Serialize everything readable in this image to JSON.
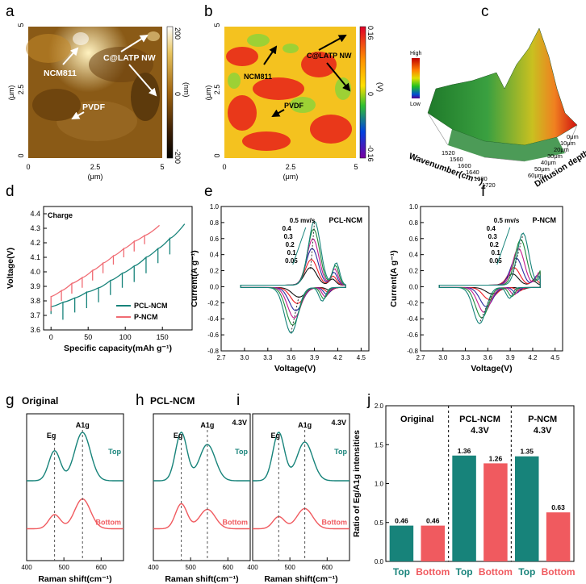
{
  "figure": {
    "panels": {
      "a": {
        "label": "a",
        "xlabel": "(μm)",
        "ylabel": "(μm)",
        "cbar_label": "(nm)",
        "xticks": [
          "0",
          "2.5",
          "5"
        ],
        "yticks": [
          "0",
          "2.5",
          "5"
        ],
        "cbar_ticks": [
          "200",
          "0",
          "-200"
        ],
        "annotations": {
          "ncm": "NCM811",
          "latp": "C@LATP NW",
          "pvdf": "PVDF"
        }
      },
      "b": {
        "label": "b",
        "xlabel": "(μm)",
        "ylabel": "(μm)",
        "cbar_label": "(V)",
        "xticks": [
          "0",
          "2.5",
          "5"
        ],
        "yticks": [
          "0",
          "2.5",
          "5"
        ],
        "cbar_ticks": [
          "0.16",
          "0",
          "-0.16"
        ],
        "annotations": {
          "ncm": "NCM811",
          "latp": "C@LATP NW",
          "pvdf": "PVDF"
        }
      },
      "c": {
        "label": "c",
        "legend_high": "High",
        "legend_low": "Low",
        "xlabel": "Wavenumber(cm⁻¹)",
        "ylabel": "Diffusion depth",
        "wavenumber_ticks": [
          "1520",
          "1560",
          "1600",
          "1640",
          "1680",
          "1720"
        ],
        "depth_ticks": [
          "0μm",
          "10μm",
          "20μm",
          "30μm",
          "40μm",
          "50μm",
          "60μm"
        ]
      }
    }
  },
  "chart_data": [
    {
      "panel": "d",
      "type": "line",
      "label": "d",
      "title": "Charge",
      "xlabel": "Specific capacity(mAh g⁻¹)",
      "ylabel": "Voltage(V)",
      "xlim": [
        -10,
        190
      ],
      "ylim": [
        3.6,
        4.45
      ],
      "xticks": [
        "0",
        "50",
        "100",
        "150"
      ],
      "yticks": [
        "3.6",
        "3.7",
        "3.8",
        "3.9",
        "4.0",
        "4.1",
        "4.2",
        "4.3",
        "4.4"
      ],
      "series": [
        {
          "name": "PCL-NCM",
          "color": "#17837a",
          "start_capacity": [
            0,
            16,
            32,
            48,
            64,
            80,
            96,
            112,
            128,
            144,
            160
          ],
          "end_capacity": [
            16,
            32,
            48,
            64,
            80,
            96,
            112,
            128,
            144,
            160,
            180
          ],
          "start_voltage": [
            3.76,
            3.79,
            3.82,
            3.86,
            3.89,
            3.94,
            3.99,
            4.04,
            4.1,
            4.16,
            4.23
          ],
          "end_voltage": [
            3.79,
            3.82,
            3.86,
            3.89,
            3.94,
            3.99,
            4.04,
            4.1,
            4.16,
            4.23,
            4.33
          ],
          "relax_voltage": [
            3.71,
            3.67,
            3.72,
            3.75,
            3.79,
            3.84,
            3.89,
            3.93,
            3.99,
            4.06,
            4.12
          ]
        },
        {
          "name": "P-NCM",
          "color": "#f06b73",
          "start_capacity": [
            0,
            14,
            28,
            42,
            56,
            70,
            84,
            98,
            112,
            126
          ],
          "end_capacity": [
            14,
            28,
            42,
            56,
            70,
            84,
            98,
            112,
            126,
            146
          ],
          "start_voltage": [
            3.83,
            3.87,
            3.92,
            3.96,
            4.01,
            4.06,
            4.11,
            4.16,
            4.21,
            4.25
          ],
          "end_voltage": [
            3.87,
            3.92,
            3.96,
            4.01,
            4.06,
            4.11,
            4.16,
            4.21,
            4.25,
            4.32
          ],
          "relax_voltage": [
            3.73,
            3.8,
            3.85,
            3.89,
            3.94,
            3.99,
            4.05,
            4.1,
            4.14,
            4.19
          ]
        }
      ]
    },
    {
      "panel": "e",
      "type": "line",
      "label": "e",
      "title": "PCL-NCM",
      "xlabel": "Voltage(V)",
      "ylabel": "Current(A g⁻¹)",
      "xlim": [
        2.7,
        4.6
      ],
      "ylim": [
        -0.8,
        1.0
      ],
      "xticks": [
        "2.7",
        "3.0",
        "3.3",
        "3.6",
        "3.9",
        "4.2",
        "4.5"
      ],
      "yticks": [
        "-0.8",
        "-0.6",
        "-0.4",
        "-0.2",
        "0.0",
        "0.2",
        "0.4",
        "0.6",
        "0.8",
        "1.0"
      ],
      "scan_rate_labels": [
        "0.5 mv/s",
        "0.4",
        "0.3",
        "0.2",
        "0.1",
        "0.05"
      ],
      "series": [
        {
          "name": "0.05",
          "color": "#111111",
          "anodic_peak_V": 3.85,
          "anodic_peak_I": 0.22,
          "cathodic_peak_V": 3.7,
          "cathodic_peak_I": -0.12
        },
        {
          "name": "0.1",
          "color": "#ee1c24",
          "anodic_peak_V": 3.86,
          "anodic_peak_I": 0.32,
          "cathodic_peak_V": 3.68,
          "cathodic_peak_I": -0.2
        },
        {
          "name": "0.2",
          "color": "#2c2ca0",
          "anodic_peak_V": 3.87,
          "anodic_peak_I": 0.46,
          "cathodic_peak_V": 3.66,
          "cathodic_peak_I": -0.29
        },
        {
          "name": "0.3",
          "color": "#c41e8d",
          "anodic_peak_V": 3.88,
          "anodic_peak_I": 0.58,
          "cathodic_peak_V": 3.64,
          "cathodic_peak_I": -0.38
        },
        {
          "name": "0.4",
          "color": "#1f8a3b",
          "anodic_peak_V": 3.89,
          "anodic_peak_I": 0.7,
          "cathodic_peak_V": 3.62,
          "cathodic_peak_I": -0.47
        },
        {
          "name": "0.5",
          "color": "#17837a",
          "anodic_peak_V": 3.9,
          "anodic_peak_I": 0.8,
          "cathodic_peak_V": 3.6,
          "cathodic_peak_I": -0.57
        }
      ]
    },
    {
      "panel": "f",
      "type": "line",
      "label": "f",
      "title": "P-NCM",
      "xlabel": "Voltage(V)",
      "ylabel": "Current(A g⁻¹)",
      "xlim": [
        2.7,
        4.6
      ],
      "ylim": [
        -0.8,
        1.0
      ],
      "xticks": [
        "2.7",
        "3.0",
        "3.3",
        "3.6",
        "3.9",
        "4.2",
        "4.5"
      ],
      "yticks": [
        "-0.8",
        "-0.6",
        "-0.4",
        "-0.2",
        "0.0",
        "0.2",
        "0.4",
        "0.6",
        "0.8",
        "1.0"
      ],
      "scan_rate_labels": [
        "0.5 mv/s",
        "0.4",
        "0.3",
        "0.2",
        "0.1",
        "0.05"
      ],
      "series": [
        {
          "name": "0.05",
          "color": "#111111",
          "anodic_peak_V": 3.93,
          "anodic_peak_I": 0.14,
          "cathodic_peak_V": 3.66,
          "cathodic_peak_I": -0.08
        },
        {
          "name": "0.1",
          "color": "#ee1c24",
          "anodic_peak_V": 3.95,
          "anodic_peak_I": 0.22,
          "cathodic_peak_V": 3.62,
          "cathodic_peak_I": -0.15
        },
        {
          "name": "0.2",
          "color": "#2c2ca0",
          "anodic_peak_V": 3.98,
          "anodic_peak_I": 0.34,
          "cathodic_peak_V": 3.58,
          "cathodic_peak_I": -0.24
        },
        {
          "name": "0.3",
          "color": "#c41e8d",
          "anodic_peak_V": 4.01,
          "anodic_peak_I": 0.46,
          "cathodic_peak_V": 3.55,
          "cathodic_peak_I": -0.31
        },
        {
          "name": "0.4",
          "color": "#1f8a3b",
          "anodic_peak_V": 4.04,
          "anodic_peak_I": 0.57,
          "cathodic_peak_V": 3.52,
          "cathodic_peak_I": -0.38
        },
        {
          "name": "0.5",
          "color": "#17837a",
          "anodic_peak_V": 4.07,
          "anodic_peak_I": 0.65,
          "cathodic_peak_V": 3.49,
          "cathodic_peak_I": -0.45
        }
      ]
    },
    {
      "panel": "g",
      "type": "line",
      "label": "g",
      "title": "Original",
      "xlabel": "Raman shift(cm⁻¹)",
      "xlim": [
        400,
        660
      ],
      "xticks": [
        "400",
        "500",
        "600"
      ],
      "peaks": {
        "Eg": 475,
        "A1g": 550
      },
      "series": [
        {
          "name": "Top",
          "color": "#17837a",
          "Eg_height": 0.62,
          "A1g_height": 1.0
        },
        {
          "name": "Bottom",
          "color": "#f05a5f",
          "Eg_height": 0.35,
          "A1g_height": 0.74
        }
      ]
    },
    {
      "panel": "h",
      "type": "line",
      "label": "h",
      "title": "PCL-NCM",
      "condition": "4.3V",
      "xlabel": "Raman shift(cm⁻¹)",
      "xlim": [
        400,
        660
      ],
      "xticks": [
        "400",
        "500",
        "600"
      ],
      "peaks": {
        "Eg": 475,
        "A1g": 545
      },
      "series": [
        {
          "name": "Top",
          "color": "#17837a",
          "Eg_height": 1.0,
          "A1g_height": 0.75
        },
        {
          "name": "Bottom",
          "color": "#f05a5f",
          "Eg_height": 0.62,
          "A1g_height": 0.48
        }
      ]
    },
    {
      "panel": "i",
      "type": "line",
      "label": "i",
      "title": "",
      "condition": "4.3V",
      "xlabel": "Raman shift(cm⁻¹)",
      "xlim": [
        400,
        660
      ],
      "xticks": [
        "400",
        "500",
        "600"
      ],
      "peaks": {
        "Eg": 470,
        "A1g": 540
      },
      "series": [
        {
          "name": "Top",
          "color": "#17837a",
          "Eg_height": 1.0,
          "A1g_height": 0.8
        },
        {
          "name": "Bottom",
          "color": "#f05a5f",
          "Eg_height": 0.3,
          "A1g_height": 0.5
        }
      ]
    },
    {
      "panel": "j",
      "type": "bar",
      "label": "j",
      "title": "",
      "ylabel": "Ratio of Eg/A1g intensities",
      "ylim": [
        0,
        2.0
      ],
      "yticks": [
        "0.0",
        "0.5",
        "1.0",
        "1.5",
        "2.0"
      ],
      "groups": [
        "Original",
        "PCL-NCM\n4.3V",
        "P-NCM\n4.3V"
      ],
      "categories": [
        "Top",
        "Bottom",
        "Top",
        "Bottom",
        "Top",
        "Bottom"
      ],
      "values": [
        0.46,
        0.46,
        1.36,
        1.26,
        1.35,
        0.63
      ],
      "value_labels": [
        "0.46",
        "0.46",
        "1.36",
        "1.26",
        "1.35",
        "0.63"
      ],
      "colors": [
        "#17837a",
        "#f05a5f",
        "#17837a",
        "#f05a5f",
        "#17837a",
        "#f05a5f"
      ]
    }
  ]
}
